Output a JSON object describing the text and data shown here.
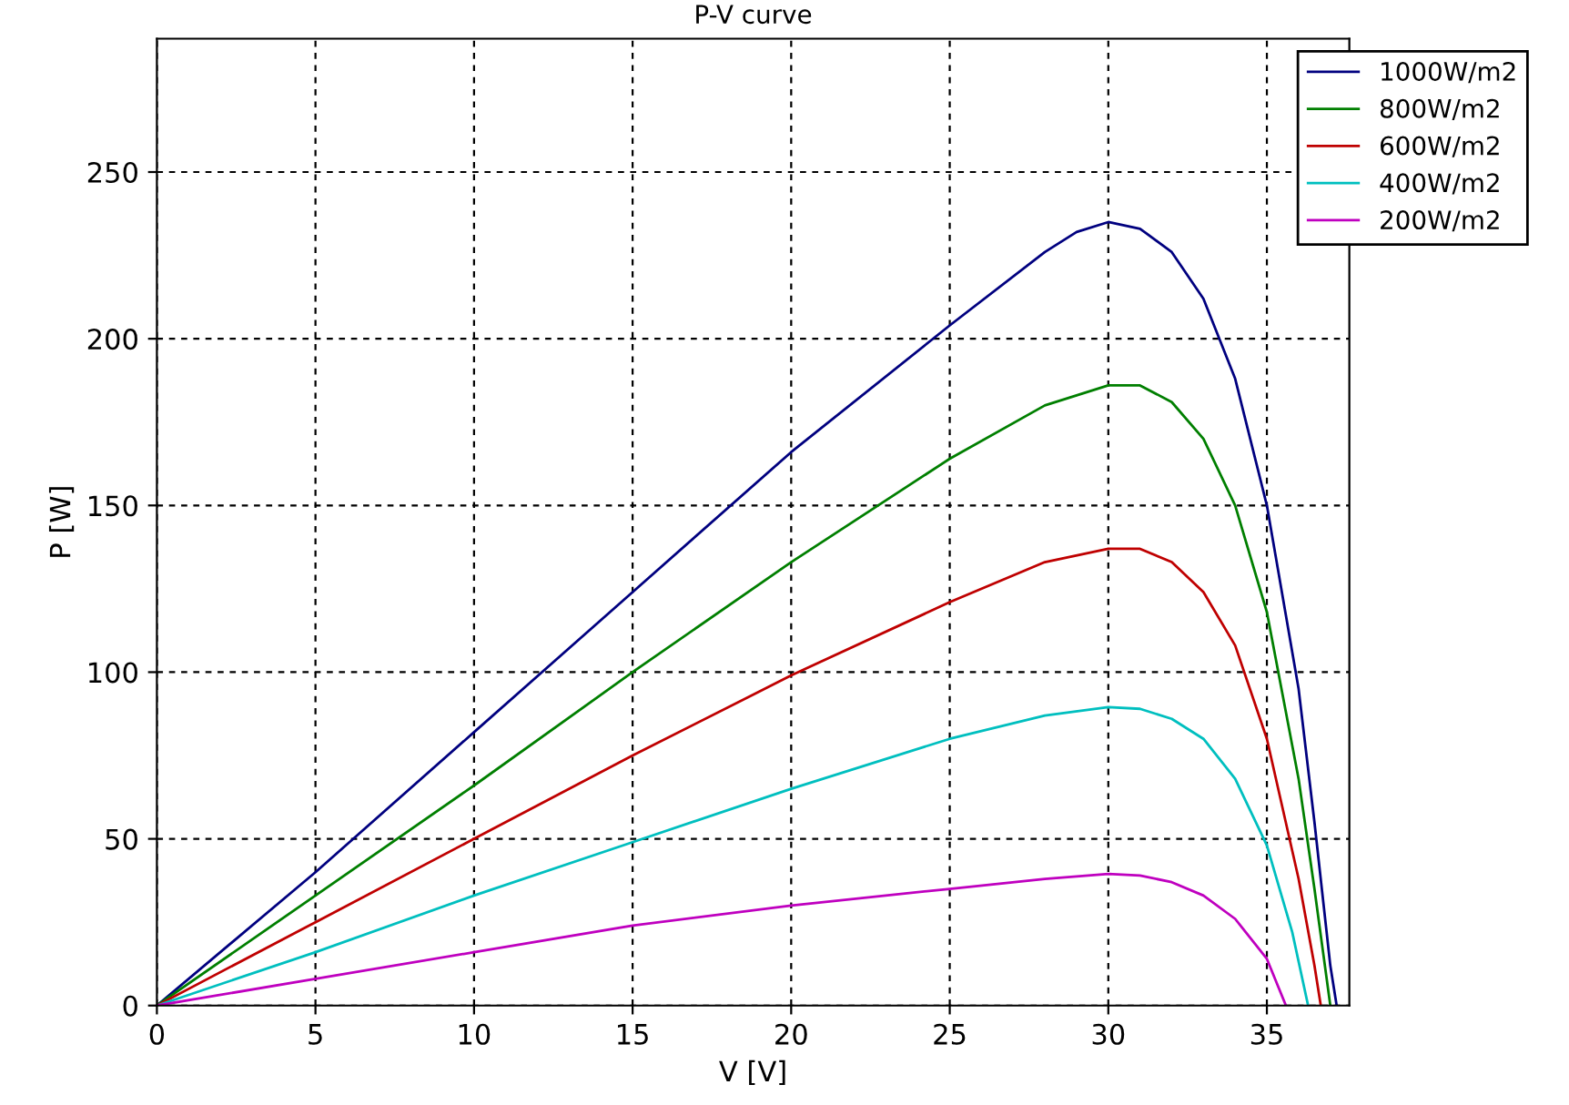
{
  "chart_data": {
    "type": "line",
    "title": "P-V curve",
    "xlabel": "V [V]",
    "ylabel": "P [W]",
    "xlim": [
      0,
      37.6
    ],
    "xticks": [
      0,
      5,
      10,
      15,
      20,
      25,
      30,
      35
    ],
    "ylim": [
      0,
      290
    ],
    "yticks": [
      0,
      50,
      100,
      150,
      200,
      250
    ],
    "grid": true,
    "legend": "top right",
    "line_style": "solid",
    "series": [
      {
        "name": "1000W/m2",
        "color": "#00007f",
        "x": [
          0,
          5,
          10,
          15,
          20,
          25,
          28,
          29,
          30,
          31,
          32,
          33,
          34,
          35,
          36,
          36.5,
          37,
          37.2
        ],
        "values": [
          0,
          40,
          82,
          124,
          166,
          204,
          226,
          232,
          235,
          233,
          226,
          212,
          188,
          150,
          95,
          55,
          12,
          0
        ]
      },
      {
        "name": "800W/m2",
        "color": "#007f00",
        "x": [
          0,
          5,
          10,
          15,
          20,
          25,
          28,
          30,
          31,
          32,
          33,
          34,
          35,
          36,
          36.5,
          37
        ],
        "values": [
          0,
          33,
          66,
          100,
          133,
          164,
          180,
          186,
          186,
          181,
          170,
          150,
          118,
          68,
          35,
          0
        ]
      },
      {
        "name": "600W/m2",
        "color": "#bf0000",
        "x": [
          0,
          5,
          10,
          15,
          20,
          25,
          28,
          30,
          31,
          32,
          33,
          34,
          35,
          36,
          36.5,
          36.7
        ],
        "values": [
          0,
          25,
          50,
          75,
          99,
          121,
          133,
          137,
          137,
          133,
          124,
          108,
          80,
          38,
          12,
          0
        ]
      },
      {
        "name": "400W/m2",
        "color": "#00bfbf",
        "x": [
          0,
          5,
          10,
          15,
          20,
          25,
          28,
          30,
          31,
          32,
          33,
          34,
          35,
          35.8,
          36.3
        ],
        "values": [
          0,
          16,
          33,
          49,
          65,
          80,
          87,
          89.5,
          89,
          86,
          80,
          68,
          48,
          22,
          0
        ]
      },
      {
        "name": "200W/m2",
        "color": "#bf00bf",
        "x": [
          0,
          5,
          10,
          15,
          20,
          25,
          28,
          30,
          31,
          32,
          33,
          34,
          35,
          35.6
        ],
        "values": [
          0,
          8,
          16,
          24,
          30,
          35,
          38,
          39.5,
          39,
          37,
          33,
          26,
          14,
          0
        ]
      }
    ]
  }
}
